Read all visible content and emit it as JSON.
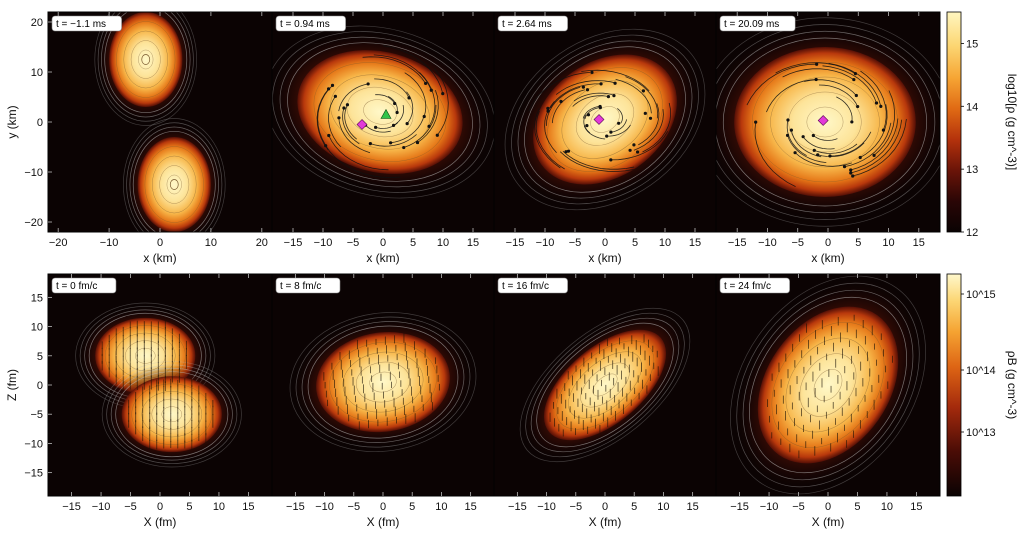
{
  "chart_data": [
    {
      "type": "heatmap",
      "title": "",
      "xlabel": "x (km)",
      "ylabel": "y (km)",
      "colorbar_label": "log10[ρ (g cm^-3)]",
      "colorbar_ticks": [
        "12",
        "13",
        "14",
        "15"
      ],
      "colorbar_range": [
        12,
        15.5
      ],
      "panels": [
        {
          "time_label": "t = −1.1 ms",
          "xlim": [
            -22,
            22
          ],
          "ylim": [
            -22,
            22
          ],
          "xticks": [
            "−20",
            "−10",
            "0",
            "10",
            "20"
          ],
          "yticks": [
            "20",
            "10",
            "0",
            "−10",
            "−20"
          ],
          "blobs": [
            {
              "cx": -2.8,
              "cy": 12.5,
              "rx": 7.2,
              "ry": 9.5,
              "rot": 0
            },
            {
              "cx": 2.8,
              "cy": -12.5,
              "rx": 7.2,
              "ry": 9.5,
              "rot": 0
            }
          ],
          "markers": []
        },
        {
          "time_label": "t = 0.94 ms",
          "xlim": [
            -18.5,
            18.5
          ],
          "ylim": [
            -22,
            22
          ],
          "xticks": [
            "−15",
            "−10",
            "−5",
            "0",
            "5",
            "10",
            "15"
          ],
          "blobs": [
            {
              "cx": -0.5,
              "cy": 2,
              "rx": 14,
              "ry": 12,
              "rot": -15
            }
          ],
          "markers": [
            {
              "type": "diamond",
              "x": -3.5,
              "y": -0.5
            },
            {
              "type": "triangle",
              "x": 0.5,
              "y": 1.5
            }
          ]
        },
        {
          "time_label": "t = 2.64 ms",
          "xlim": [
            -18.5,
            18.5
          ],
          "ylim": [
            -22,
            22
          ],
          "xticks": [
            "−15",
            "−10",
            "−5",
            "0",
            "5",
            "10",
            "15"
          ],
          "blobs": [
            {
              "cx": 0,
              "cy": 0.5,
              "rx": 13,
              "ry": 11.5,
              "rot": 35
            }
          ],
          "markers": [
            {
              "type": "diamond",
              "x": -1,
              "y": 0.5
            }
          ]
        },
        {
          "time_label": "t = 20.09 ms",
          "xlim": [
            -18.5,
            18.5
          ],
          "ylim": [
            -22,
            22
          ],
          "xticks": [
            "−15",
            "−10",
            "−5",
            "0",
            "5",
            "10",
            "15"
          ],
          "blobs": [
            {
              "cx": -0.5,
              "cy": 0,
              "rx": 15,
              "ry": 15,
              "rot": 0
            }
          ],
          "markers": [
            {
              "type": "diamond",
              "x": -0.8,
              "y": 0.3
            }
          ]
        }
      ]
    },
    {
      "type": "heatmap",
      "title": "",
      "xlabel": "X (fm)",
      "ylabel": "Z (fm)",
      "colorbar_label": "ρB (g cm^-3)",
      "colorbar_ticks": [
        "10^15",
        "10^14",
        "10^13"
      ],
      "panels": [
        {
          "time_label": "t = 0 fm/c",
          "xlim": [
            -19,
            19
          ],
          "ylim": [
            -19,
            19
          ],
          "xticks": [
            "−15",
            "−10",
            "−5",
            "0",
            "5",
            "10",
            "15"
          ],
          "yticks": [
            "15",
            "10",
            "5",
            "0",
            "−5",
            "−10",
            "−15"
          ],
          "blobs": [
            {
              "cx": -2.5,
              "cy": 5,
              "rx": 8.5,
              "ry": 6.5,
              "rot": 0
            },
            {
              "cx": 2,
              "cy": -5,
              "rx": 8.5,
              "ry": 6.5,
              "rot": 0
            }
          ]
        },
        {
          "time_label": "t = 8 fm/c",
          "xlim": [
            -19,
            19
          ],
          "ylim": [
            -19,
            19
          ],
          "xticks": [
            "−15",
            "−10",
            "−5",
            "0",
            "5",
            "10",
            "15"
          ],
          "blobs": [
            {
              "cx": 0,
              "cy": 0.5,
              "rx": 11.5,
              "ry": 8.5,
              "rot": 8
            }
          ]
        },
        {
          "time_label": "t = 16 fm/c",
          "xlim": [
            -19,
            19
          ],
          "ylim": [
            -19,
            19
          ],
          "xticks": [
            "−15",
            "−10",
            "−5",
            "0",
            "5",
            "10",
            "15"
          ],
          "blobs": [
            {
              "cx": 0,
              "cy": 0,
              "rx": 12.5,
              "ry": 6.5,
              "rot": 40
            }
          ]
        },
        {
          "time_label": "t = 24 fm/c",
          "xlim": [
            -19,
            19
          ],
          "ylim": [
            -19,
            19
          ],
          "xticks": [
            "−15",
            "−10",
            "−5",
            "0",
            "5",
            "10",
            "15"
          ],
          "blobs": [
            {
              "cx": 0,
              "cy": 0,
              "rx": 14.5,
              "ry": 10.5,
              "rot": 55
            }
          ]
        }
      ]
    }
  ],
  "colors": {
    "density_stops": [
      "#0a0303",
      "#2a0606",
      "#6a1408",
      "#b4320c",
      "#e06a14",
      "#f6a534",
      "#fcd774",
      "#fff6c0"
    ],
    "diamond": "#e23ad8",
    "triangle": "#33c44a",
    "contour": "#bcbcbc"
  }
}
